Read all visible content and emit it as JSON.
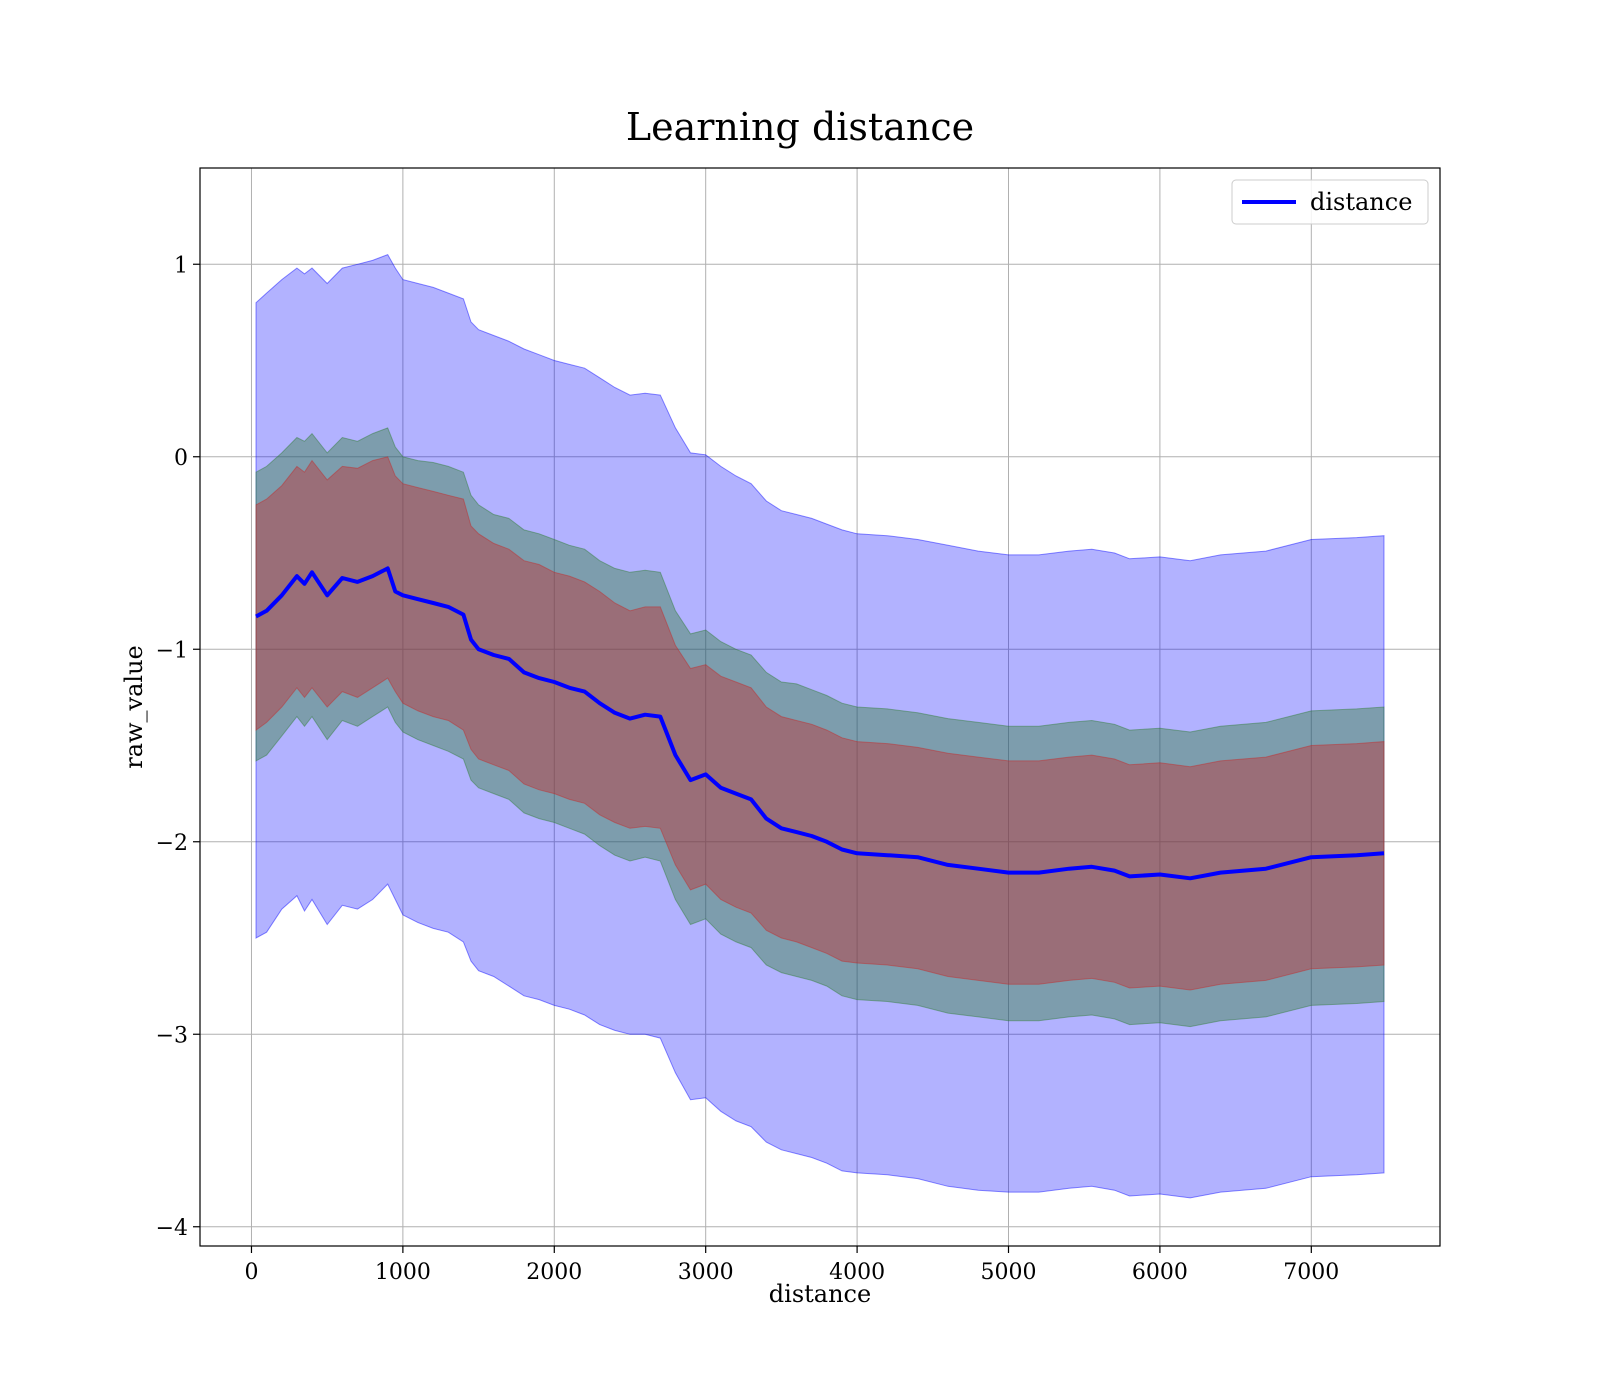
{
  "chart_data": {
    "type": "area",
    "title": "Learning distance",
    "xlabel": "distance",
    "ylabel": "raw_value",
    "xlim": [
      -340,
      7850
    ],
    "ylim": [
      -4.1,
      1.5
    ],
    "xticks": [
      0,
      1000,
      2000,
      3000,
      4000,
      5000,
      6000,
      7000
    ],
    "yticks": [
      -4,
      -3,
      -2,
      -1,
      0,
      1
    ],
    "xtick_labels": [
      "0",
      "1000",
      "2000",
      "3000",
      "4000",
      "5000",
      "6000",
      "7000"
    ],
    "ytick_labels": [
      "−4",
      "−3",
      "−2",
      "−1",
      "0",
      "1"
    ],
    "grid": true,
    "legend": {
      "position": "top-right",
      "entries": [
        "distance"
      ]
    },
    "colors": {
      "line": "#0000ff",
      "band_outer": "#0000ff",
      "band_middle": "#2e7d32",
      "band_inner": "#c62828"
    },
    "x": [
      30,
      100,
      200,
      300,
      350,
      400,
      500,
      600,
      700,
      800,
      900,
      950,
      1000,
      1100,
      1200,
      1300,
      1400,
      1450,
      1500,
      1600,
      1700,
      1800,
      1900,
      2000,
      2100,
      2200,
      2300,
      2400,
      2500,
      2600,
      2700,
      2800,
      2900,
      3000,
      3100,
      3200,
      3300,
      3400,
      3500,
      3600,
      3700,
      3800,
      3900,
      4000,
      4200,
      4400,
      4600,
      4800,
      5000,
      5200,
      5400,
      5550,
      5700,
      5800,
      6000,
      6200,
      6400,
      6700,
      7000,
      7300,
      7480
    ],
    "series": [
      {
        "name": "distance",
        "values": [
          -0.83,
          -0.8,
          -0.72,
          -0.62,
          -0.66,
          -0.6,
          -0.72,
          -0.63,
          -0.65,
          -0.62,
          -0.58,
          -0.7,
          -0.72,
          -0.74,
          -0.76,
          -0.78,
          -0.82,
          -0.95,
          -1.0,
          -1.03,
          -1.05,
          -1.12,
          -1.15,
          -1.17,
          -1.2,
          -1.22,
          -1.28,
          -1.33,
          -1.36,
          -1.34,
          -1.35,
          -1.55,
          -1.68,
          -1.65,
          -1.72,
          -1.75,
          -1.78,
          -1.88,
          -1.93,
          -1.95,
          -1.97,
          -2.0,
          -2.04,
          -2.06,
          -2.07,
          -2.08,
          -2.12,
          -2.14,
          -2.16,
          -2.16,
          -2.14,
          -2.13,
          -2.15,
          -2.18,
          -2.17,
          -2.19,
          -2.16,
          -2.14,
          -2.08,
          -2.07,
          -2.06
        ]
      }
    ],
    "bands": [
      {
        "lower": [
          -2.5,
          -2.47,
          -2.35,
          -2.28,
          -2.36,
          -2.3,
          -2.43,
          -2.33,
          -2.35,
          -2.3,
          -2.22,
          -2.3,
          -2.38,
          -2.42,
          -2.45,
          -2.47,
          -2.52,
          -2.62,
          -2.67,
          -2.7,
          -2.75,
          -2.8,
          -2.82,
          -2.85,
          -2.87,
          -2.9,
          -2.95,
          -2.98,
          -3.0,
          -3.0,
          -3.02,
          -3.2,
          -3.34,
          -3.33,
          -3.4,
          -3.45,
          -3.48,
          -3.56,
          -3.6,
          -3.62,
          -3.64,
          -3.67,
          -3.71,
          -3.72,
          -3.73,
          -3.75,
          -3.79,
          -3.81,
          -3.82,
          -3.82,
          -3.8,
          -3.79,
          -3.81,
          -3.84,
          -3.83,
          -3.85,
          -3.82,
          -3.8,
          -3.74,
          -3.73,
          -3.72
        ],
        "upper": [
          0.8,
          0.85,
          0.92,
          0.98,
          0.95,
          0.98,
          0.9,
          0.98,
          1.0,
          1.02,
          1.05,
          0.98,
          0.92,
          0.9,
          0.88,
          0.85,
          0.82,
          0.7,
          0.66,
          0.63,
          0.6,
          0.56,
          0.53,
          0.5,
          0.48,
          0.46,
          0.41,
          0.36,
          0.32,
          0.33,
          0.32,
          0.15,
          0.02,
          0.01,
          -0.05,
          -0.1,
          -0.14,
          -0.23,
          -0.28,
          -0.3,
          -0.32,
          -0.35,
          -0.38,
          -0.4,
          -0.41,
          -0.43,
          -0.46,
          -0.49,
          -0.51,
          -0.51,
          -0.49,
          -0.48,
          -0.5,
          -0.53,
          -0.52,
          -0.54,
          -0.51,
          -0.49,
          -0.43,
          -0.42,
          -0.41
        ]
      },
      {
        "lower": [
          -1.58,
          -1.55,
          -1.45,
          -1.35,
          -1.4,
          -1.35,
          -1.47,
          -1.37,
          -1.4,
          -1.35,
          -1.3,
          -1.38,
          -1.43,
          -1.47,
          -1.5,
          -1.53,
          -1.57,
          -1.68,
          -1.72,
          -1.75,
          -1.78,
          -1.85,
          -1.88,
          -1.9,
          -1.93,
          -1.96,
          -2.02,
          -2.07,
          -2.1,
          -2.08,
          -2.1,
          -2.3,
          -2.43,
          -2.4,
          -2.48,
          -2.52,
          -2.55,
          -2.64,
          -2.68,
          -2.7,
          -2.72,
          -2.75,
          -2.8,
          -2.82,
          -2.83,
          -2.85,
          -2.89,
          -2.91,
          -2.93,
          -2.93,
          -2.91,
          -2.9,
          -2.92,
          -2.95,
          -2.94,
          -2.96,
          -2.93,
          -2.91,
          -2.85,
          -2.84,
          -2.83
        ],
        "upper": [
          -0.08,
          -0.05,
          0.02,
          0.1,
          0.08,
          0.12,
          0.02,
          0.1,
          0.08,
          0.12,
          0.15,
          0.05,
          0.0,
          -0.02,
          -0.03,
          -0.05,
          -0.08,
          -0.2,
          -0.25,
          -0.3,
          -0.32,
          -0.38,
          -0.4,
          -0.43,
          -0.46,
          -0.48,
          -0.54,
          -0.58,
          -0.6,
          -0.59,
          -0.6,
          -0.8,
          -0.92,
          -0.9,
          -0.96,
          -1.0,
          -1.03,
          -1.12,
          -1.17,
          -1.18,
          -1.21,
          -1.24,
          -1.28,
          -1.3,
          -1.31,
          -1.33,
          -1.36,
          -1.38,
          -1.4,
          -1.4,
          -1.38,
          -1.37,
          -1.39,
          -1.42,
          -1.41,
          -1.43,
          -1.4,
          -1.38,
          -1.32,
          -1.31,
          -1.3
        ]
      },
      {
        "lower": [
          -1.42,
          -1.38,
          -1.3,
          -1.2,
          -1.25,
          -1.2,
          -1.3,
          -1.22,
          -1.25,
          -1.2,
          -1.15,
          -1.22,
          -1.28,
          -1.32,
          -1.35,
          -1.37,
          -1.42,
          -1.52,
          -1.57,
          -1.6,
          -1.63,
          -1.7,
          -1.73,
          -1.75,
          -1.78,
          -1.8,
          -1.86,
          -1.9,
          -1.93,
          -1.92,
          -1.93,
          -2.12,
          -2.25,
          -2.22,
          -2.3,
          -2.34,
          -2.37,
          -2.46,
          -2.5,
          -2.52,
          -2.55,
          -2.58,
          -2.62,
          -2.63,
          -2.64,
          -2.66,
          -2.7,
          -2.72,
          -2.74,
          -2.74,
          -2.72,
          -2.71,
          -2.73,
          -2.76,
          -2.75,
          -2.77,
          -2.74,
          -2.72,
          -2.66,
          -2.65,
          -2.64
        ],
        "upper": [
          -0.25,
          -0.22,
          -0.15,
          -0.05,
          -0.08,
          -0.02,
          -0.12,
          -0.05,
          -0.06,
          -0.02,
          0.0,
          -0.1,
          -0.14,
          -0.16,
          -0.18,
          -0.2,
          -0.22,
          -0.36,
          -0.4,
          -0.45,
          -0.48,
          -0.54,
          -0.56,
          -0.6,
          -0.62,
          -0.65,
          -0.7,
          -0.76,
          -0.8,
          -0.78,
          -0.78,
          -0.98,
          -1.1,
          -1.08,
          -1.14,
          -1.17,
          -1.2,
          -1.3,
          -1.35,
          -1.37,
          -1.39,
          -1.42,
          -1.46,
          -1.48,
          -1.49,
          -1.51,
          -1.54,
          -1.56,
          -1.58,
          -1.58,
          -1.56,
          -1.55,
          -1.57,
          -1.6,
          -1.59,
          -1.61,
          -1.58,
          -1.56,
          -1.5,
          -1.49,
          -1.48
        ]
      }
    ]
  }
}
